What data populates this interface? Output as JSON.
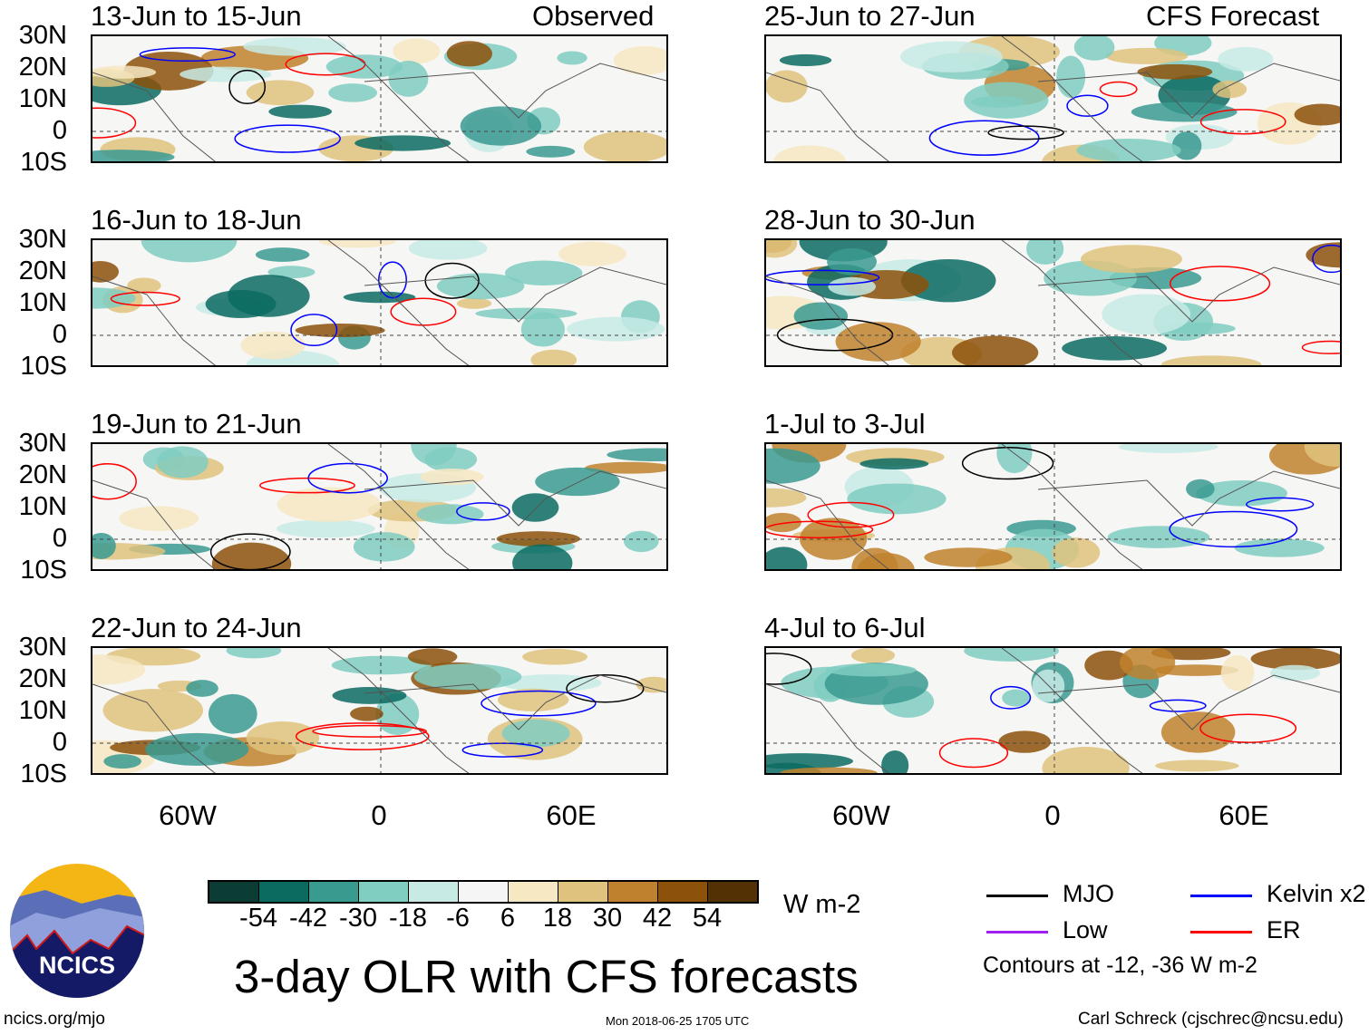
{
  "labels": {
    "observed": "Observed",
    "forecast": "CFS Forecast"
  },
  "panels": [
    {
      "title": "13-Jun to 15-Jun"
    },
    {
      "title": "25-Jun to 27-Jun"
    },
    {
      "title": "16-Jun to 18-Jun"
    },
    {
      "title": "28-Jun to 30-Jun"
    },
    {
      "title": "19-Jun to 21-Jun"
    },
    {
      "title": "1-Jul to 3-Jul"
    },
    {
      "title": "22-Jun to 24-Jun"
    },
    {
      "title": "4-Jul to 6-Jul"
    }
  ],
  "lat_ticks": [
    "30N",
    "20N",
    "10N",
    "0",
    "10S"
  ],
  "lon_ticks": [
    "60W",
    "0",
    "60E"
  ],
  "colorbar": {
    "colors": [
      "#0c3d35",
      "#0b6b61",
      "#399a90",
      "#80cdc1",
      "#c7eae5",
      "#f5f5f5",
      "#f6e8c3",
      "#dfc27d",
      "#bf812d",
      "#8c510a",
      "#543005"
    ],
    "ticks": [
      "-54",
      "-42",
      "-30",
      "-18",
      "-6",
      "6",
      "18",
      "30",
      "42",
      "54"
    ],
    "units": "W m-2"
  },
  "legend": {
    "items": [
      {
        "label": "MJO",
        "color": "#000000"
      },
      {
        "label": "Kelvin x2",
        "color": "#0000ff"
      },
      {
        "label": "Low",
        "color": "#a020f0"
      },
      {
        "label": "ER",
        "color": "#ff0000"
      }
    ],
    "note": "Contours at -12, -36 W m-2"
  },
  "logo": {
    "text": "NCICS"
  },
  "title": "3-day OLR with CFS forecasts",
  "footer": {
    "url": "ncics.org/mjo",
    "timestamp": "Mon 2018-06-25 1705 UTC",
    "credit": "Carl Schreck (cjschrec@ncsu.edu)"
  }
}
